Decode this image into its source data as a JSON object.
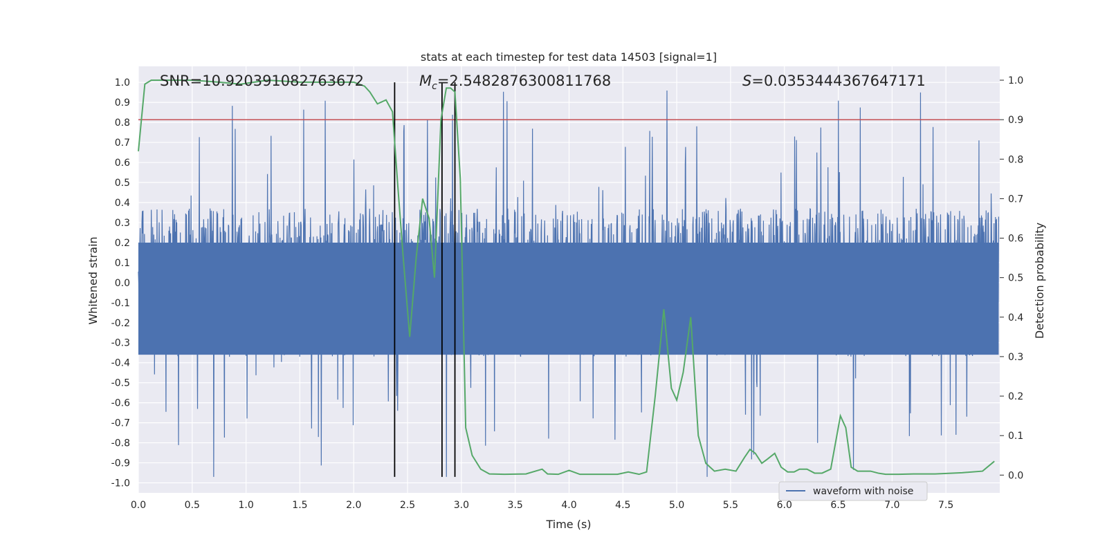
{
  "chart_data": {
    "type": "line",
    "title": "stats at each timestep for test data 14503 [signal=1]",
    "xlabel": "Time (s)",
    "ylabel": "Whitened strain",
    "y2label": "Detection probability",
    "xlim": [
      0.0,
      8.0
    ],
    "ylim": [
      -1.05,
      1.08
    ],
    "y2lim": [
      -0.045,
      1.035
    ],
    "xticks": [
      "0.0",
      "0.5",
      "1.0",
      "1.5",
      "2.0",
      "2.5",
      "3.0",
      "3.5",
      "4.0",
      "4.5",
      "5.0",
      "5.5",
      "6.0",
      "6.5",
      "7.0",
      "7.5"
    ],
    "yticks": [
      "-1.0",
      "-0.9",
      "-0.8",
      "-0.7",
      "-0.6",
      "-0.5",
      "-0.4",
      "-0.3",
      "-0.2",
      "-0.1",
      "0.0",
      "0.1",
      "0.2",
      "0.3",
      "0.4",
      "0.5",
      "0.6",
      "0.7",
      "0.8",
      "0.9",
      "1.0"
    ],
    "y2ticks": [
      "0.0",
      "0.1",
      "0.2",
      "0.3",
      "0.4",
      "0.5",
      "0.6",
      "0.7",
      "0.8",
      "0.9",
      "1.0"
    ],
    "grid": true,
    "legend": {
      "placement": "lower-right",
      "entries": [
        "waveform with noise"
      ]
    },
    "annotations": {
      "snr": "SNR=10.920391082763672",
      "mc_symbol": "M",
      "mc_sub": "c",
      "mc_value": "=2.5482876300811768",
      "s_symbol": "S",
      "s_value": "=0.0353444367647171"
    },
    "threshold_y2": 0.9,
    "vlines_x": [
      2.38,
      2.82,
      2.94
    ],
    "vline_range_y": [
      -0.97,
      1.0
    ],
    "noise_envelope": {
      "typical_abs": 0.37,
      "max_abs": 1.0,
      "min": -0.97
    },
    "series": [
      {
        "name": "waveform with noise",
        "role": "strain",
        "color": "#4c72b0"
      },
      {
        "role": "probability",
        "color": "#55a868",
        "x": [
          0.0,
          0.06,
          0.12,
          0.25,
          0.5,
          0.75,
          0.95,
          1.2,
          1.5,
          1.8,
          2.0,
          2.1,
          2.15,
          2.22,
          2.3,
          2.36,
          2.41,
          2.46,
          2.52,
          2.58,
          2.64,
          2.7,
          2.75,
          2.81,
          2.86,
          2.9,
          2.94,
          2.99,
          3.04,
          3.1,
          3.18,
          3.26,
          3.4,
          3.6,
          3.75,
          3.8,
          3.9,
          4.0,
          4.1,
          4.3,
          4.45,
          4.55,
          4.65,
          4.72,
          4.8,
          4.88,
          4.95,
          5.0,
          5.06,
          5.13,
          5.2,
          5.27,
          5.35,
          5.45,
          5.55,
          5.63,
          5.68,
          5.73,
          5.79,
          5.84,
          5.91,
          5.97,
          6.03,
          6.09,
          6.14,
          6.21,
          6.28,
          6.35,
          6.43,
          6.52,
          6.57,
          6.62,
          6.68,
          6.74,
          6.8,
          6.87,
          6.94,
          7.06,
          7.2,
          7.4,
          7.65,
          7.84,
          7.95
        ],
        "y": [
          0.82,
          0.99,
          1.0,
          1.0,
          1.0,
          0.995,
          0.99,
          1.0,
          0.995,
          0.995,
          0.995,
          0.985,
          0.97,
          0.94,
          0.95,
          0.92,
          0.73,
          0.55,
          0.35,
          0.55,
          0.7,
          0.65,
          0.5,
          0.9,
          0.98,
          0.98,
          0.97,
          0.75,
          0.12,
          0.05,
          0.015,
          0.003,
          0.002,
          0.003,
          0.015,
          0.003,
          0.002,
          0.012,
          0.002,
          0.002,
          0.002,
          0.008,
          0.002,
          0.008,
          0.2,
          0.42,
          0.22,
          0.19,
          0.26,
          0.4,
          0.1,
          0.03,
          0.01,
          0.015,
          0.01,
          0.045,
          0.065,
          0.055,
          0.03,
          0.04,
          0.055,
          0.02,
          0.008,
          0.008,
          0.015,
          0.015,
          0.005,
          0.005,
          0.015,
          0.15,
          0.12,
          0.02,
          0.01,
          0.01,
          0.01,
          0.005,
          0.002,
          0.002,
          0.003,
          0.003,
          0.006,
          0.01,
          0.035
        ]
      }
    ]
  }
}
